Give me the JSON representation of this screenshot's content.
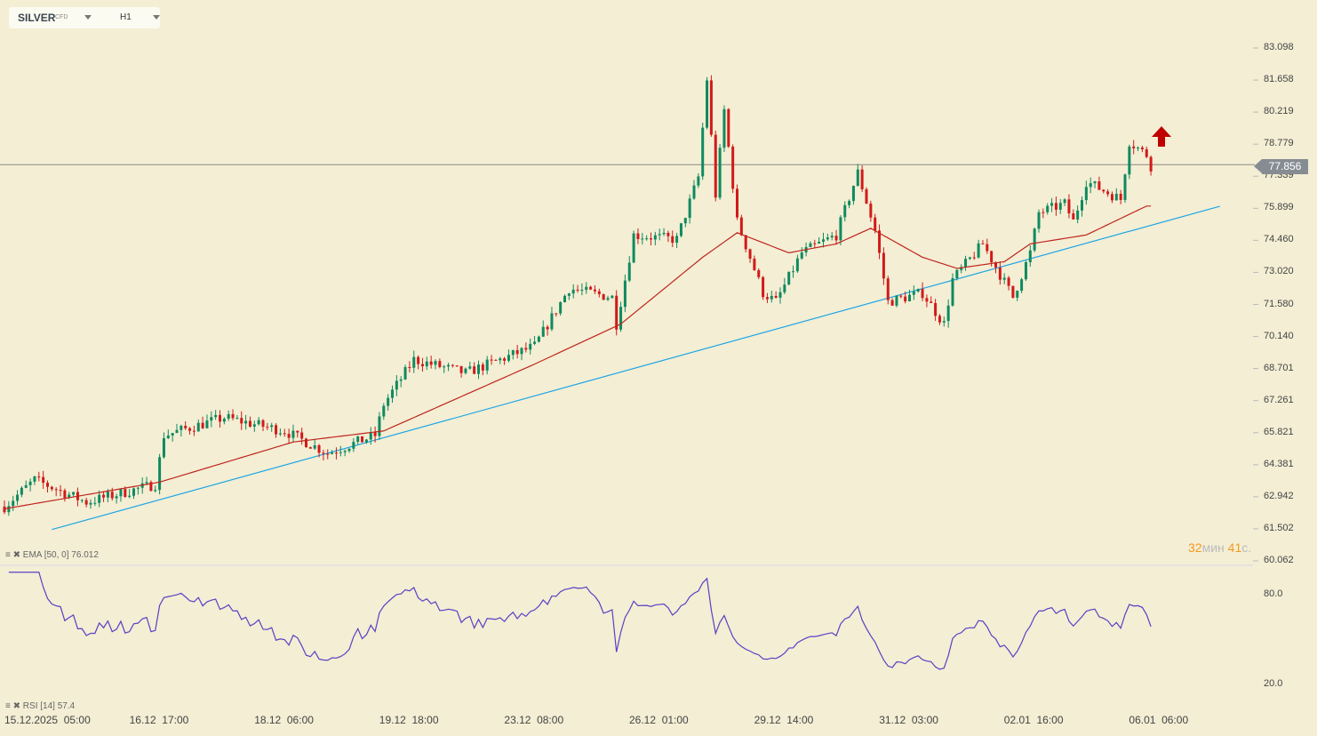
{
  "header": {
    "symbol": "SILVER",
    "symbol_type": "CFD",
    "timeframe": "H1"
  },
  "current_price": "77.856",
  "timer": {
    "minutes": "32",
    "min_unit": "мин",
    "seconds": "41",
    "sec_unit": "с."
  },
  "indicators": {
    "ema_label": "EMA",
    "ema_params": "[50, 0]",
    "ema_value": "76.012",
    "rsi_label": "RSI",
    "rsi_params": "[14]",
    "rsi_value": "57.4"
  },
  "chart_data": {
    "type": "candlestick",
    "price_ticks": [
      "83.098",
      "81.658",
      "80.219",
      "78.779",
      "77.339",
      "75.899",
      "74.460",
      "73.020",
      "71.580",
      "70.140",
      "68.701",
      "67.261",
      "65.821",
      "64.381",
      "62.942",
      "61.502",
      "60.062"
    ],
    "price_range": [
      60.062,
      83.098
    ],
    "rsi_ticks": [
      "80.0",
      "20.0"
    ],
    "x_ticks": [
      "15.12.2025  05:00",
      "16.12  17:00",
      "18.12  06:00",
      "19.12  18:00",
      "23.12  08:00",
      "26.12  01:00",
      "29.12  14:00",
      "31.12  03:00",
      "02.01  16:00",
      "06.01  06:00"
    ],
    "candle_count": 267,
    "close_path": [
      [
        0,
        62.5
      ],
      [
        7,
        63.7
      ],
      [
        19,
        62.7
      ],
      [
        35,
        63.5
      ],
      [
        37,
        65.7
      ],
      [
        51,
        66.5
      ],
      [
        65,
        65.9
      ],
      [
        75,
        64.9
      ],
      [
        86,
        65.7
      ],
      [
        88,
        67.1
      ],
      [
        95,
        69.1
      ],
      [
        107,
        68.5
      ],
      [
        123,
        69.7
      ],
      [
        131,
        72.3
      ],
      [
        141,
        71.9
      ],
      [
        142,
        70.7
      ],
      [
        146,
        74.7
      ],
      [
        156,
        74.5
      ],
      [
        161,
        77.3
      ],
      [
        163,
        81.7
      ],
      [
        165,
        76.5
      ],
      [
        167,
        80.3
      ],
      [
        170,
        75.3
      ],
      [
        176,
        72.1
      ],
      [
        179,
        71.7
      ],
      [
        185,
        73.9
      ],
      [
        193,
        74.7
      ],
      [
        198,
        77.5
      ],
      [
        202,
        74.9
      ],
      [
        205,
        71.7
      ],
      [
        213,
        72.1
      ],
      [
        218,
        70.7
      ],
      [
        220,
        72.7
      ],
      [
        227,
        74.3
      ],
      [
        234,
        71.9
      ],
      [
        238,
        73.9
      ],
      [
        240,
        75.7
      ],
      [
        246,
        76.1
      ],
      [
        248,
        75.3
      ],
      [
        251,
        77.1
      ],
      [
        259,
        76.3
      ],
      [
        261,
        78.9
      ],
      [
        265,
        78.3
      ],
      [
        266,
        77.8
      ]
    ],
    "ema_path": [
      [
        0,
        62.4
      ],
      [
        36,
        63.6
      ],
      [
        67,
        65.4
      ],
      [
        88,
        65.9
      ],
      [
        123,
        68.9
      ],
      [
        143,
        70.7
      ],
      [
        162,
        73.7
      ],
      [
        170,
        74.8
      ],
      [
        182,
        73.9
      ],
      [
        193,
        74.3
      ],
      [
        201,
        75.0
      ],
      [
        213,
        73.7
      ],
      [
        221,
        73.2
      ],
      [
        232,
        73.5
      ],
      [
        238,
        74.3
      ],
      [
        251,
        74.7
      ],
      [
        265,
        76.0
      ]
    ],
    "trendline": [
      [
        11,
        61.47
      ],
      [
        282,
        75.99
      ]
    ],
    "colors": {
      "up": "#0f8a5f",
      "down": "#d11a1a",
      "ema": "#c0241c",
      "trend": "#1ea5e6",
      "rsi": "#5b3fc4",
      "arrow": "#c00000"
    }
  }
}
